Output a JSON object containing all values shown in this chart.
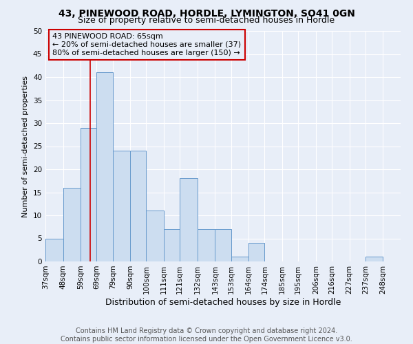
{
  "title": "43, PINEWOOD ROAD, HORDLE, LYMINGTON, SO41 0GN",
  "subtitle": "Size of property relative to semi-detached houses in Hordle",
  "xlabel": "Distribution of semi-detached houses by size in Hordle",
  "ylabel": "Number of semi-detached properties",
  "bin_labels": [
    "37sqm",
    "48sqm",
    "59sqm",
    "69sqm",
    "79sqm",
    "90sqm",
    "100sqm",
    "111sqm",
    "121sqm",
    "132sqm",
    "143sqm",
    "153sqm",
    "164sqm",
    "174sqm",
    "185sqm",
    "195sqm",
    "206sqm",
    "216sqm",
    "227sqm",
    "237sqm",
    "248sqm"
  ],
  "bin_edges": [
    37,
    48,
    59,
    69,
    79,
    90,
    100,
    111,
    121,
    132,
    143,
    153,
    164,
    174,
    185,
    195,
    206,
    216,
    227,
    237,
    248
  ],
  "bar_values": [
    5,
    16,
    29,
    41,
    24,
    24,
    11,
    7,
    18,
    7,
    7,
    1,
    4,
    0,
    0,
    0,
    0,
    0,
    0,
    1,
    0
  ],
  "bar_color": "#ccddf0",
  "bar_edge_color": "#6699cc",
  "property_line_x": 65,
  "property_line_color": "#cc0000",
  "ylim": [
    0,
    50
  ],
  "yticks": [
    0,
    5,
    10,
    15,
    20,
    25,
    30,
    35,
    40,
    45,
    50
  ],
  "annotation_title": "43 PINEWOOD ROAD: 65sqm",
  "annotation_line1": "← 20% of semi-detached houses are smaller (37)",
  "annotation_line2": "80% of semi-detached houses are larger (150) →",
  "annotation_box_color": "#cc0000",
  "footer1": "Contains HM Land Registry data © Crown copyright and database right 2024.",
  "footer2": "Contains public sector information licensed under the Open Government Licence v3.0.",
  "background_color": "#e8eef8",
  "grid_color": "#ffffff",
  "title_fontsize": 10,
  "subtitle_fontsize": 9,
  "ylabel_fontsize": 8,
  "xlabel_fontsize": 9,
  "tick_fontsize": 7.5,
  "annotation_fontsize": 8,
  "footer_fontsize": 7
}
